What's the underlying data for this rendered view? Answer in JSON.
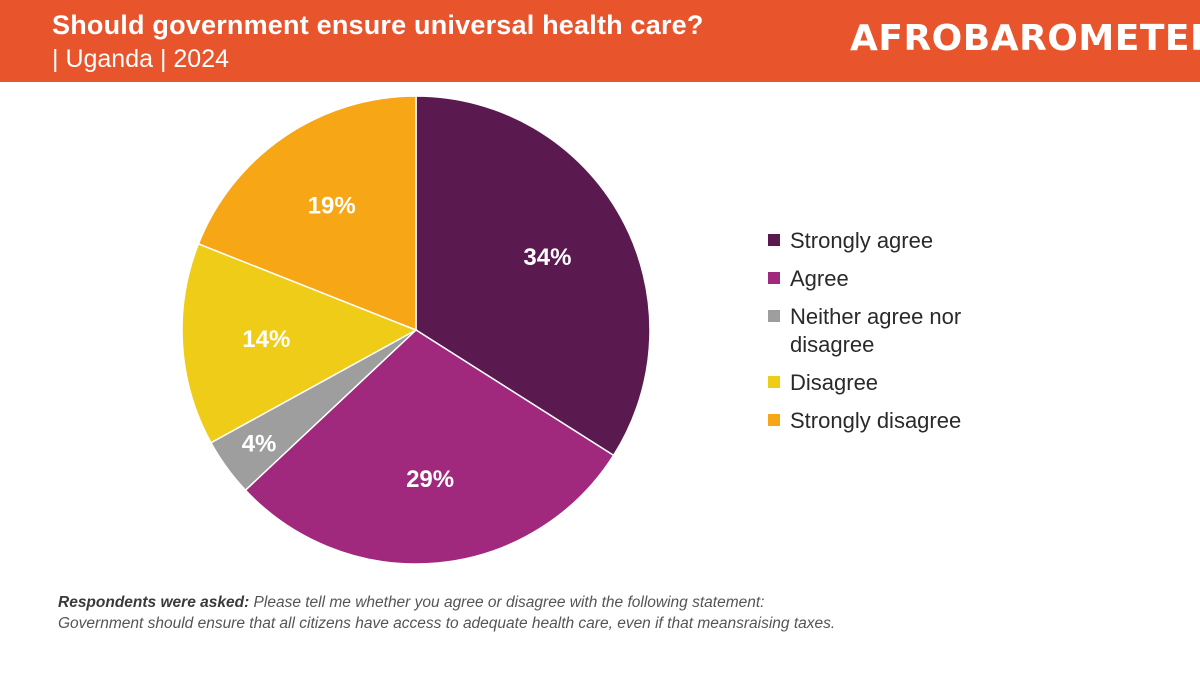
{
  "header": {
    "title": "Should government ensure universal health care?",
    "subtitle": "| Uganda | 2024",
    "logo_text": "AFROBAROMETER",
    "background_color": "#e8542c"
  },
  "chart_data": {
    "type": "pie",
    "title": "Should government ensure universal health care?",
    "slices": [
      {
        "label": "Strongly agree",
        "value": 34,
        "display": "34%",
        "color": "#5a1a50"
      },
      {
        "label": "Agree",
        "value": 29,
        "display": "29%",
        "color": "#a0287d"
      },
      {
        "label": "Neither agree nor disagree",
        "value": 4,
        "display": "4%",
        "color": "#9e9e9e"
      },
      {
        "label": "Disagree",
        "value": 14,
        "display": "14%",
        "color": "#efcc17"
      },
      {
        "label": "Strongly disagree",
        "value": 19,
        "display": "19%",
        "color": "#f7a616"
      }
    ],
    "legend_placement": "right",
    "start_direction": "top",
    "direction": "clockwise"
  },
  "legend": {
    "items": [
      {
        "label": "Strongly agree",
        "color": "#5a1a50"
      },
      {
        "label": "Agree",
        "color": "#a0287d"
      },
      {
        "label": "Neither agree nor disagree",
        "color": "#9e9e9e"
      },
      {
        "label": "Disagree",
        "color": "#efcc17"
      },
      {
        "label": "Strongly disagree",
        "color": "#f7a616"
      }
    ]
  },
  "footnote": {
    "label": "Respondents were asked:",
    "text_line1": " Please tell me whether you agree or disagree with the following statement:",
    "text_line2": "Government should ensure that all citizens have access to adequate health care, even if that meansraising taxes."
  }
}
